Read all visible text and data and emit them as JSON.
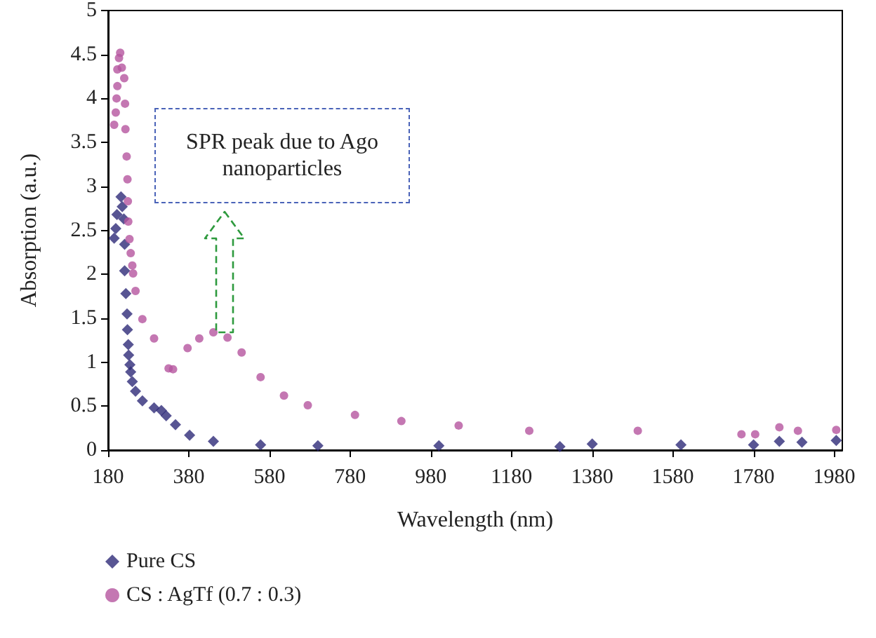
{
  "chart_data": {
    "type": "scatter",
    "xlabel": "Wavelength (nm)",
    "ylabel": "Absorption (a.u.)",
    "xlim": [
      180,
      2000
    ],
    "xticks": [
      180,
      380,
      580,
      780,
      980,
      1180,
      1380,
      1580,
      1780,
      1980
    ],
    "ylim": [
      0,
      5
    ],
    "yticks": [
      0,
      0.5,
      1,
      1.5,
      2,
      2.5,
      3,
      3.5,
      4,
      4.5,
      5
    ],
    "legend": "bottom",
    "annotations": [
      "SPR peak due to Ago nanoparticles"
    ],
    "series": [
      {
        "name": "Pure CS",
        "color": "#2e2a78",
        "marker": "diamond",
        "x": [
          195,
          199,
          202,
          212,
          215,
          219,
          221,
          221,
          224,
          227,
          228,
          230,
          231,
          234,
          236,
          240,
          248,
          265,
          294,
          312,
          324,
          347,
          382,
          441,
          558,
          700,
          1000,
          1300,
          1380,
          1600,
          1780,
          1844,
          1900,
          1985
        ],
        "values": [
          2.41,
          2.52,
          2.68,
          2.88,
          2.77,
          2.63,
          2.34,
          2.04,
          1.78,
          1.55,
          1.37,
          1.2,
          1.08,
          0.97,
          0.89,
          0.78,
          0.67,
          0.56,
          0.48,
          0.45,
          0.39,
          0.29,
          0.17,
          0.1,
          0.06,
          0.05,
          0.05,
          0.04,
          0.07,
          0.06,
          0.06,
          0.1,
          0.09,
          0.11
        ]
      },
      {
        "name": "CS : AgTf (0.7 : 0.3)",
        "color": "#b5559f",
        "marker": "circle",
        "x": [
          195,
          199,
          201,
          203,
          203,
          207,
          210,
          214,
          220,
          222,
          223,
          226,
          228,
          229,
          230,
          233,
          236,
          240,
          242,
          248,
          265,
          294,
          330,
          341,
          377,
          406,
          441,
          476,
          511,
          558,
          616,
          675,
          792,
          907,
          1049,
          1224,
          1493,
          1750,
          1784,
          1844,
          1890,
          1985
        ],
        "values": [
          3.7,
          3.84,
          4.0,
          4.14,
          4.33,
          4.46,
          4.52,
          4.35,
          4.23,
          3.94,
          3.65,
          3.34,
          3.08,
          2.83,
          2.6,
          2.4,
          2.24,
          2.1,
          2.01,
          1.81,
          1.49,
          1.27,
          0.93,
          0.92,
          1.16,
          1.27,
          1.34,
          1.28,
          1.11,
          0.83,
          0.62,
          0.51,
          0.4,
          0.33,
          0.28,
          0.22,
          0.22,
          0.18,
          0.18,
          0.26,
          0.22,
          0.23
        ]
      }
    ]
  }
}
